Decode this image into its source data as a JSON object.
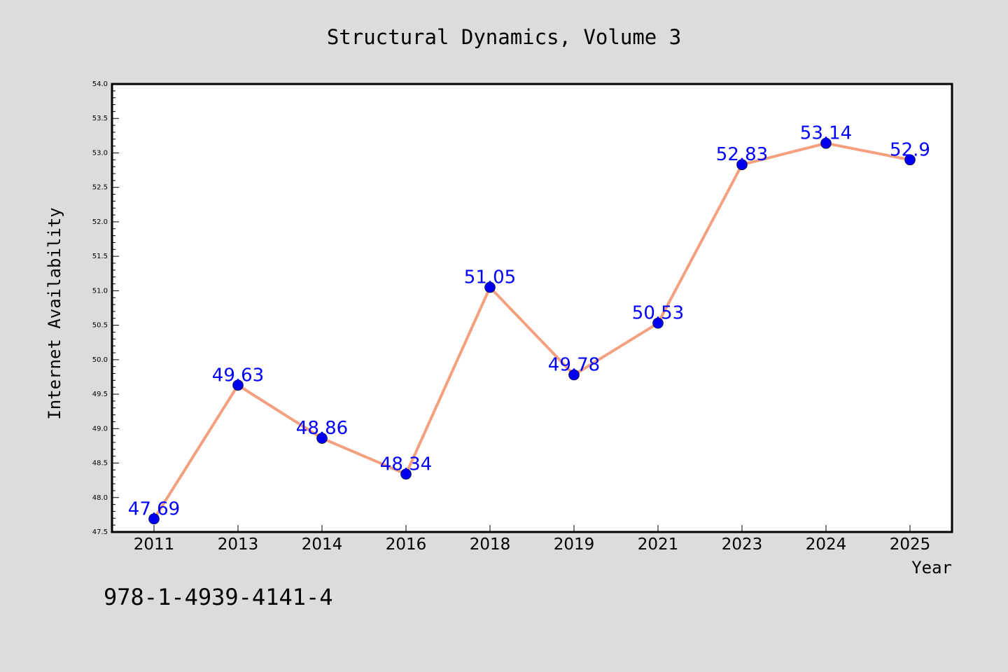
{
  "figure": {
    "background": "#dcdcdc",
    "footer_text": "978-1-4939-4141-4"
  },
  "chart_data": {
    "type": "line",
    "title": "Structural Dynamics, Volume 3",
    "xlabel": "Year",
    "ylabel": "Internet Availability",
    "categories": [
      "2011",
      "2013",
      "2014",
      "2016",
      "2018",
      "2019",
      "2021",
      "2023",
      "2024",
      "2025"
    ],
    "series": [
      {
        "values": [
          47.69,
          49.63,
          48.86,
          48.34,
          51.05,
          49.78,
          50.53,
          52.83,
          53.14,
          52.9
        ],
        "labels": [
          "47.69",
          "49.63",
          "48.86",
          "48.34",
          "51.05",
          "49.78",
          "50.53",
          "52.83",
          "53.14",
          "52.9"
        ],
        "line_color": "#f4a07e",
        "marker_color": "#0000ee",
        "label_color": "#0000ff"
      }
    ],
    "ylim": [
      47.5,
      54.0
    ],
    "ytick_step": 0.5,
    "ytick_labels": [
      "47.5",
      "48.0",
      "48.5",
      "49.0",
      "49.5",
      "50.0",
      "50.5",
      "51.0",
      "51.5",
      "52.0",
      "52.5",
      "53.0",
      "53.5",
      "54.0"
    ],
    "grid": false,
    "legend": "none"
  }
}
